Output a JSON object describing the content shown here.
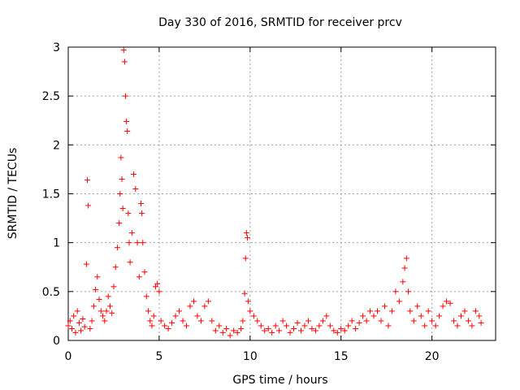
{
  "chart_data": {
    "type": "scatter",
    "title": "Day 330 of 2016, SRMTID for receiver prcv",
    "xlabel": "GPS time / hours",
    "ylabel": "SRMTID / TECUs",
    "xlim": [
      0,
      23.5
    ],
    "ylim": [
      0,
      3
    ],
    "xticks": [
      0,
      5,
      10,
      15,
      20
    ],
    "yticks": [
      0,
      0.5,
      1,
      1.5,
      2,
      2.5,
      3
    ],
    "ytick_labels": [
      "0",
      "0.5",
      "1",
      "1.5",
      "2",
      "2.5",
      "3"
    ],
    "grid": true,
    "marker": "+",
    "color": "#ff0000",
    "series": [
      {
        "name": "SRMTID",
        "points": [
          [
            0.0,
            0.15
          ],
          [
            0.1,
            0.2
          ],
          [
            0.2,
            0.12
          ],
          [
            0.3,
            0.25
          ],
          [
            0.4,
            0.08
          ],
          [
            0.5,
            0.3
          ],
          [
            0.6,
            0.18
          ],
          [
            0.7,
            0.1
          ],
          [
            0.8,
            0.22
          ],
          [
            0.9,
            0.14
          ],
          [
            1.0,
            0.78
          ],
          [
            1.05,
            1.64
          ],
          [
            1.1,
            1.38
          ],
          [
            1.2,
            0.12
          ],
          [
            1.3,
            0.2
          ],
          [
            1.4,
            0.35
          ],
          [
            1.5,
            0.52
          ],
          [
            1.6,
            0.65
          ],
          [
            1.7,
            0.42
          ],
          [
            1.8,
            0.3
          ],
          [
            1.9,
            0.25
          ],
          [
            2.0,
            0.2
          ],
          [
            2.1,
            0.3
          ],
          [
            2.2,
            0.45
          ],
          [
            2.3,
            0.35
          ],
          [
            2.4,
            0.28
          ],
          [
            2.5,
            0.55
          ],
          [
            2.6,
            0.75
          ],
          [
            2.7,
            0.95
          ],
          [
            2.8,
            1.2
          ],
          [
            2.85,
            1.5
          ],
          [
            2.9,
            1.87
          ],
          [
            2.95,
            1.65
          ],
          [
            3.0,
            1.35
          ],
          [
            3.05,
            2.97
          ],
          [
            3.1,
            2.85
          ],
          [
            3.15,
            2.5
          ],
          [
            3.2,
            2.24
          ],
          [
            3.25,
            2.14
          ],
          [
            3.3,
            1.3
          ],
          [
            3.35,
            1.0
          ],
          [
            3.4,
            0.8
          ],
          [
            3.5,
            1.1
          ],
          [
            3.6,
            1.7
          ],
          [
            3.7,
            1.55
          ],
          [
            3.8,
            1.0
          ],
          [
            3.9,
            0.65
          ],
          [
            4.0,
            1.4
          ],
          [
            4.05,
            1.3
          ],
          [
            4.1,
            1.0
          ],
          [
            4.2,
            0.7
          ],
          [
            4.3,
            0.45
          ],
          [
            4.4,
            0.3
          ],
          [
            4.5,
            0.2
          ],
          [
            4.6,
            0.15
          ],
          [
            4.7,
            0.25
          ],
          [
            4.8,
            0.55
          ],
          [
            4.9,
            0.58
          ],
          [
            5.0,
            0.5
          ],
          [
            5.1,
            0.2
          ],
          [
            5.3,
            0.15
          ],
          [
            5.5,
            0.12
          ],
          [
            5.7,
            0.18
          ],
          [
            5.9,
            0.25
          ],
          [
            6.1,
            0.3
          ],
          [
            6.3,
            0.2
          ],
          [
            6.5,
            0.15
          ],
          [
            6.7,
            0.35
          ],
          [
            6.9,
            0.4
          ],
          [
            7.1,
            0.25
          ],
          [
            7.3,
            0.2
          ],
          [
            7.5,
            0.35
          ],
          [
            7.7,
            0.4
          ],
          [
            7.9,
            0.2
          ],
          [
            8.1,
            0.1
          ],
          [
            8.3,
            0.15
          ],
          [
            8.5,
            0.08
          ],
          [
            8.7,
            0.12
          ],
          [
            8.9,
            0.05
          ],
          [
            9.1,
            0.1
          ],
          [
            9.3,
            0.08
          ],
          [
            9.5,
            0.12
          ],
          [
            9.6,
            0.2
          ],
          [
            9.7,
            0.48
          ],
          [
            9.75,
            0.84
          ],
          [
            9.8,
            1.1
          ],
          [
            9.85,
            1.05
          ],
          [
            9.9,
            0.4
          ],
          [
            10.0,
            0.3
          ],
          [
            10.2,
            0.25
          ],
          [
            10.4,
            0.2
          ],
          [
            10.6,
            0.15
          ],
          [
            10.8,
            0.1
          ],
          [
            11.0,
            0.12
          ],
          [
            11.2,
            0.08
          ],
          [
            11.4,
            0.15
          ],
          [
            11.6,
            0.1
          ],
          [
            11.8,
            0.2
          ],
          [
            12.0,
            0.15
          ],
          [
            12.2,
            0.08
          ],
          [
            12.4,
            0.12
          ],
          [
            12.6,
            0.18
          ],
          [
            12.8,
            0.1
          ],
          [
            13.0,
            0.15
          ],
          [
            13.2,
            0.2
          ],
          [
            13.4,
            0.12
          ],
          [
            13.6,
            0.1
          ],
          [
            13.8,
            0.15
          ],
          [
            14.0,
            0.2
          ],
          [
            14.2,
            0.25
          ],
          [
            14.4,
            0.15
          ],
          [
            14.6,
            0.1
          ],
          [
            14.8,
            0.08
          ],
          [
            15.0,
            0.12
          ],
          [
            15.2,
            0.1
          ],
          [
            15.4,
            0.15
          ],
          [
            15.6,
            0.2
          ],
          [
            15.8,
            0.12
          ],
          [
            16.0,
            0.18
          ],
          [
            16.2,
            0.25
          ],
          [
            16.4,
            0.2
          ],
          [
            16.6,
            0.3
          ],
          [
            16.8,
            0.25
          ],
          [
            17.0,
            0.3
          ],
          [
            17.2,
            0.2
          ],
          [
            17.4,
            0.35
          ],
          [
            17.6,
            0.15
          ],
          [
            17.8,
            0.3
          ],
          [
            18.0,
            0.5
          ],
          [
            18.2,
            0.4
          ],
          [
            18.4,
            0.6
          ],
          [
            18.5,
            0.74
          ],
          [
            18.6,
            0.84
          ],
          [
            18.7,
            0.5
          ],
          [
            18.8,
            0.3
          ],
          [
            19.0,
            0.2
          ],
          [
            19.2,
            0.35
          ],
          [
            19.4,
            0.25
          ],
          [
            19.6,
            0.15
          ],
          [
            19.8,
            0.3
          ],
          [
            20.0,
            0.2
          ],
          [
            20.2,
            0.15
          ],
          [
            20.4,
            0.25
          ],
          [
            20.6,
            0.35
          ],
          [
            20.8,
            0.4
          ],
          [
            21.0,
            0.38
          ],
          [
            21.2,
            0.2
          ],
          [
            21.4,
            0.15
          ],
          [
            21.6,
            0.25
          ],
          [
            21.8,
            0.3
          ],
          [
            22.0,
            0.2
          ],
          [
            22.2,
            0.15
          ],
          [
            22.4,
            0.3
          ],
          [
            22.6,
            0.25
          ],
          [
            22.7,
            0.18
          ]
        ]
      }
    ]
  }
}
